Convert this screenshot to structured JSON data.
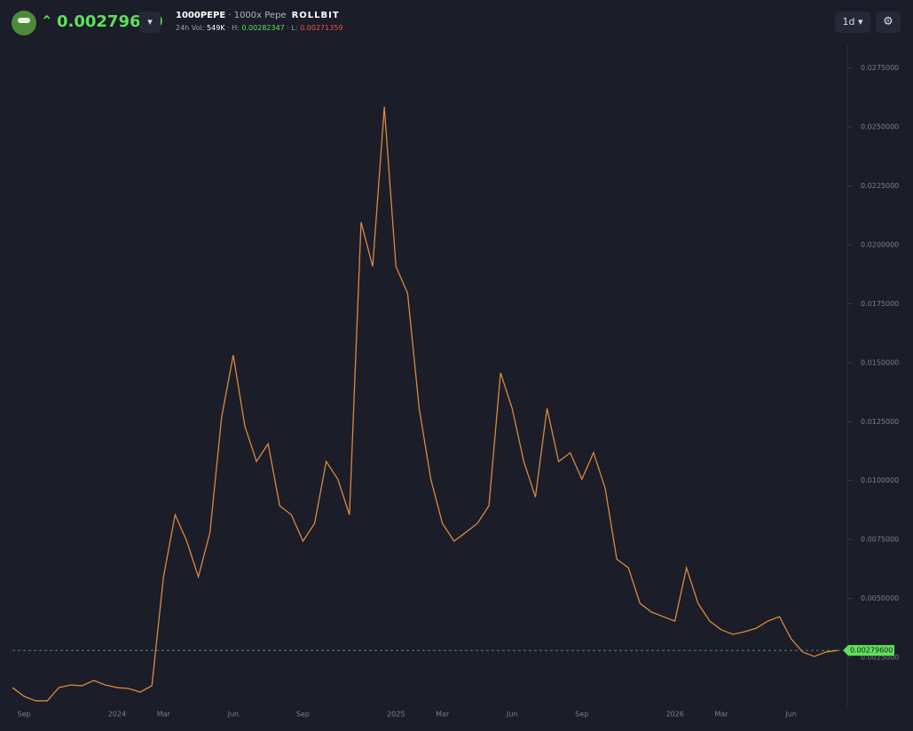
{
  "header": {
    "price": "0.00279600",
    "symbol": "1000PEPE",
    "name": "· 1000x Pepe",
    "brand": "ROLLBIT",
    "volume_label": "24h Vol:",
    "volume": "549K",
    "high_label": "· H:",
    "high": "0.00282347",
    "low_label": "· L:",
    "low": "0.00271359",
    "interval": "1d"
  },
  "chart_data": {
    "type": "line",
    "categories": [
      null,
      "Sep",
      null,
      null,
      null,
      null,
      null,
      null,
      null,
      "2024",
      null,
      null,
      null,
      "Mar",
      null,
      null,
      null,
      null,
      null,
      "Jun",
      null,
      null,
      null,
      null,
      null,
      "Sep",
      null,
      null,
      null,
      null,
      null,
      null,
      null,
      "2025",
      null,
      null,
      null,
      "Mar",
      null,
      null,
      null,
      null,
      null,
      "Jun",
      null,
      null,
      null,
      null,
      null,
      "Sep",
      null,
      null,
      null,
      null,
      null,
      null,
      null,
      "2026",
      null,
      null,
      null,
      "Mar",
      null,
      null,
      null,
      null,
      null,
      "Jun",
      null,
      null,
      null,
      null
    ],
    "series": [
      {
        "name": "1000PEPE",
        "color": "#d98a3c",
        "values": [
          0.00122,
          0.00085,
          0.00066,
          0.00066,
          0.00122,
          0.00133,
          0.0013,
          0.00152,
          0.00133,
          0.00122,
          0.00118,
          0.00103,
          0.0013,
          0.00592,
          0.00855,
          0.00743,
          0.00592,
          0.0078,
          0.01269,
          0.01532,
          0.01231,
          0.01081,
          0.01156,
          0.00893,
          0.00855,
          0.00743,
          0.00818,
          0.01081,
          0.01006,
          0.00855,
          0.02096,
          0.01908,
          0.02585,
          0.01908,
          0.01795,
          0.01306,
          0.01006,
          0.00818,
          0.00743,
          0.0078,
          0.00818,
          0.00893,
          0.01457,
          0.01306,
          0.01081,
          0.0093,
          0.01306,
          0.01081,
          0.01118,
          0.01006,
          0.01118,
          0.00968,
          0.00667,
          0.0063,
          0.00479,
          0.00442,
          0.00423,
          0.00404,
          0.0063,
          0.00479,
          0.00404,
          0.00367,
          0.00348,
          0.00359,
          0.00374,
          0.00404,
          0.00423,
          0.00329,
          0.00273,
          0.00254,
          0.00273,
          0.002796
        ]
      }
    ],
    "last_price": {
      "value": 0.002796,
      "label": "0.00279600"
    },
    "ylim": [
      0.00047,
      0.0282
    ],
    "yticks": [
      {
        "value": 0.0025,
        "label": "0.0025000"
      },
      {
        "value": 0.005,
        "label": "0.0050000"
      },
      {
        "value": 0.0075,
        "label": "0.0075000"
      },
      {
        "value": 0.01,
        "label": "0.0100000"
      },
      {
        "value": 0.0125,
        "label": "0.0125000"
      },
      {
        "value": 0.015,
        "label": "0.0150000"
      },
      {
        "value": 0.0175,
        "label": "0.0175000"
      },
      {
        "value": 0.02,
        "label": "0.0200000"
      },
      {
        "value": 0.0225,
        "label": "0.0225000"
      },
      {
        "value": 0.025,
        "label": "0.0250000"
      },
      {
        "value": 0.0275,
        "label": "0.0275000"
      }
    ],
    "grid": false
  }
}
